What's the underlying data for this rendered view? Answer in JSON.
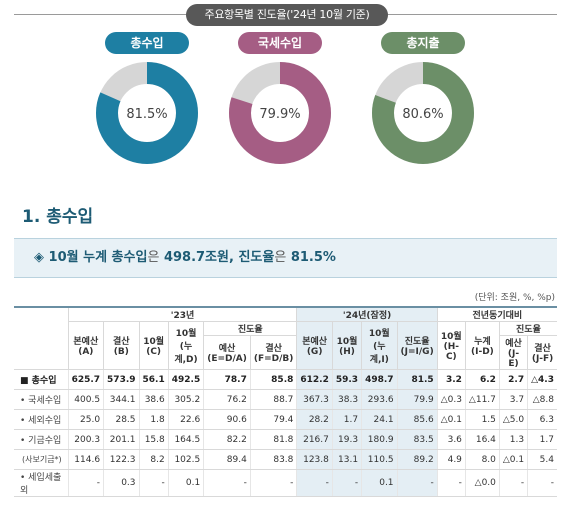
{
  "header": {
    "title": "주요항목별 진도율('24년 10월 기준)"
  },
  "donuts": [
    {
      "label": "총수입",
      "value": "81.5%",
      "progress": 0.815,
      "color": "#1e7fa3"
    },
    {
      "label": "국세수입",
      "value": "79.9%",
      "progress": 0.799,
      "color": "#a55d84"
    },
    {
      "label": "총지출",
      "value": "80.6%",
      "progress": 0.806,
      "color": "#6c8f68"
    }
  ],
  "section": {
    "title": "1. 총수입",
    "summary": {
      "bullet": "◈",
      "part1": "10월 누계 총수입",
      "part2": "은",
      "part3": "498.7조원, 진도율",
      "part4": "은",
      "part5": "81.5%"
    }
  },
  "table": {
    "unit": "(단위: 조원, %, %p)",
    "group_headers": {
      "y23": "'23년",
      "y24": "'24년(잠정)",
      "yoy": "전년동기대비",
      "progress": "진도율",
      "progress2": "진도율",
      "progress3": "진도율"
    },
    "col_headers": [
      "본예산\n(A)",
      "결산\n(B)",
      "10월\n(C)",
      "10월\n(누계,D)",
      "예산\n(E=D/A)",
      "결산\n(F=D/B)",
      "본예산\n(G)",
      "10월\n(H)",
      "10월\n(누계,I)",
      "진도율\n(J=I/G)",
      "10월\n(H-C)",
      "누계\n(I-D)",
      "예산\n(J-E)",
      "결산\n(J-F)"
    ],
    "rows": [
      {
        "label": "■ 총수입",
        "total": true,
        "values": [
          "625.7",
          "573.9",
          "56.1",
          "492.5",
          "78.7",
          "85.8",
          "612.2",
          "59.3",
          "498.7",
          "81.5",
          "3.2",
          "6.2",
          "2.7",
          "△4.3"
        ]
      },
      {
        "label": "• 국세수입",
        "values": [
          "400.5",
          "344.1",
          "38.6",
          "305.2",
          "76.2",
          "88.7",
          "367.3",
          "38.3",
          "293.6",
          "79.9",
          "△0.3",
          "△11.7",
          "3.7",
          "△8.8"
        ]
      },
      {
        "label": "• 세외수입",
        "values": [
          "25.0",
          "28.5",
          "1.8",
          "22.6",
          "90.6",
          "79.4",
          "28.2",
          "1.7",
          "24.1",
          "85.6",
          "△0.1",
          "1.5",
          "△5.0",
          "6.3"
        ]
      },
      {
        "label": "• 기금수입",
        "values": [
          "200.3",
          "201.1",
          "15.8",
          "164.5",
          "82.2",
          "81.8",
          "216.7",
          "19.3",
          "180.9",
          "83.5",
          "3.6",
          "16.4",
          "1.3",
          "1.7"
        ]
      },
      {
        "label": "(사보기금*)",
        "sub": true,
        "values": [
          "114.6",
          "122.3",
          "8.2",
          "102.5",
          "89.4",
          "83.8",
          "123.8",
          "13.1",
          "110.5",
          "89.2",
          "4.9",
          "8.0",
          "△0.1",
          "5.4"
        ]
      },
      {
        "label": "• 세입세출 외",
        "values": [
          "-",
          "0.3",
          "-",
          "0.1",
          "-",
          "-",
          "-",
          "-",
          "0.1",
          "-",
          "-",
          "△0.0",
          "-",
          "-"
        ]
      }
    ]
  }
}
